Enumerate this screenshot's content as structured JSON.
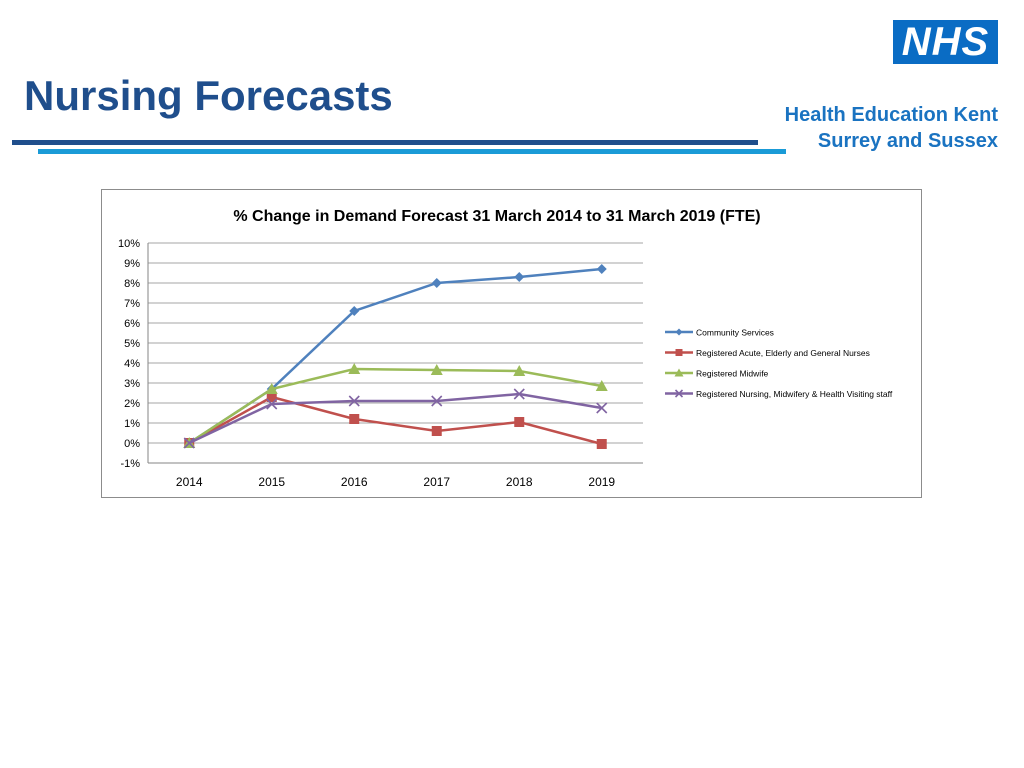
{
  "page": {
    "title": "Nursing Forecasts",
    "logo_text": "NHS",
    "org_line1": "Health Education Kent",
    "org_line2": "Surrey and Sussex"
  },
  "colors": {
    "title": "#1f4e8c",
    "nhs_blue": "#0a6cc4",
    "org_text": "#1a73c1",
    "rule_dark": "#1f4e8c",
    "rule_light": "#1a9bd7"
  },
  "chart_data": {
    "type": "line",
    "title": "% Change in Demand Forecast 31 March 2014 to 31 March 2019 (FTE)",
    "xlabel": "",
    "ylabel": "",
    "categories": [
      "2014",
      "2015",
      "2016",
      "2017",
      "2018",
      "2019"
    ],
    "ylim": [
      -0.01,
      0.1
    ],
    "yticks": [
      -0.01,
      0,
      0.01,
      0.02,
      0.03,
      0.04,
      0.05,
      0.06,
      0.07,
      0.08,
      0.09,
      0.1
    ],
    "ytick_labels": [
      "-1%",
      "0%",
      "1%",
      "2%",
      "3%",
      "4%",
      "5%",
      "6%",
      "7%",
      "8%",
      "9%",
      "10%"
    ],
    "grid": true,
    "legend": "right",
    "series": [
      {
        "name": "Community Services",
        "color": "#4f81bd",
        "marker": "diamond",
        "values": [
          0.0,
          0.027,
          0.066,
          0.08,
          0.083,
          0.087
        ]
      },
      {
        "name": "Registered Acute, Elderly and General Nurses",
        "color": "#c0504d",
        "marker": "square",
        "values": [
          0.0,
          0.023,
          0.012,
          0.006,
          0.0105,
          -0.0005
        ]
      },
      {
        "name": "Registered Midwife",
        "color": "#9bbb59",
        "marker": "triangle",
        "values": [
          0.0,
          0.027,
          0.037,
          0.0365,
          0.036,
          0.0285
        ]
      },
      {
        "name": "Registered Nursing, Midwifery & Health Visiting staff",
        "color": "#8064a2",
        "marker": "x",
        "values": [
          0.0,
          0.0195,
          0.021,
          0.021,
          0.0245,
          0.0175
        ]
      }
    ]
  }
}
